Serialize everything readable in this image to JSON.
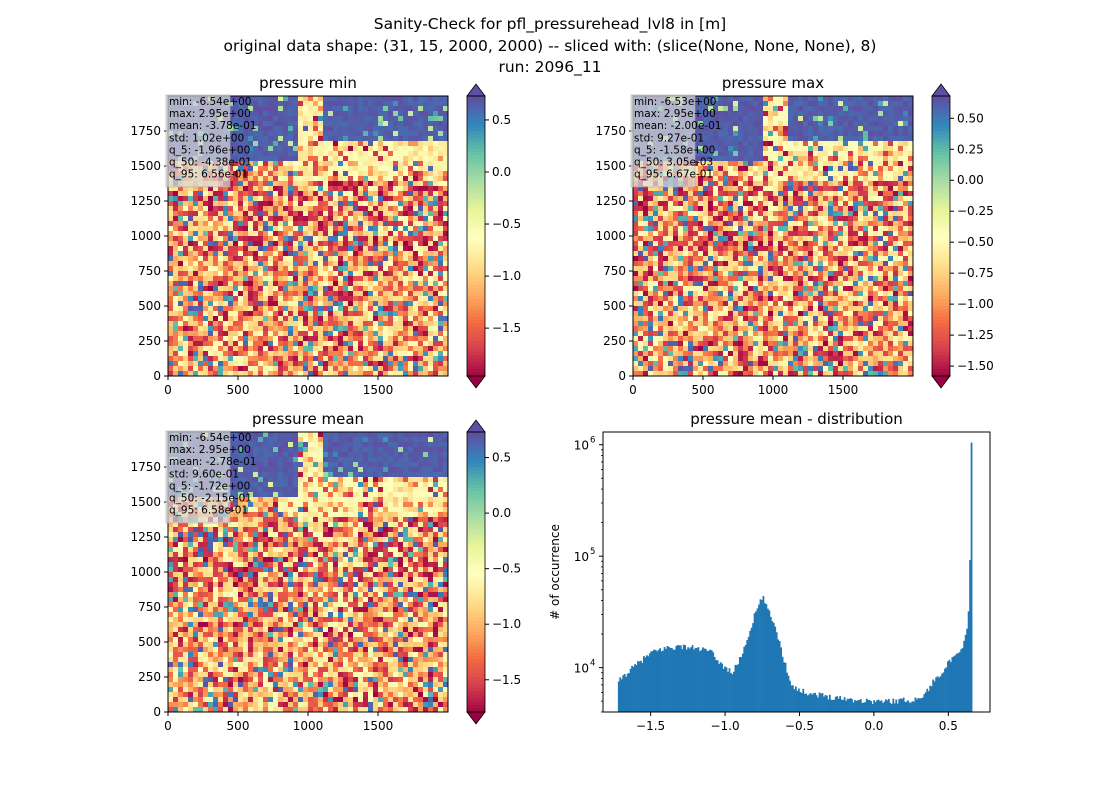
{
  "figure": {
    "suptitle_lines": [
      "Sanity-Check for pfl_pressurehead_lvl8 in [m]",
      "original data shape: (31, 15, 2000, 2000) -- sliced with: (slice(None, None, None), 8)",
      "run: 2096_11"
    ]
  },
  "colormap": {
    "name": "Spectral",
    "stops": [
      "#9e0142",
      "#d53e4f",
      "#f46d43",
      "#fdae61",
      "#fee08b",
      "#ffffbf",
      "#e6f598",
      "#abdda4",
      "#66c2a5",
      "#3288bd",
      "#5e4fa2"
    ]
  },
  "chart_data": [
    {
      "type": "heatmap",
      "title": "pressure min",
      "xlim": [
        0,
        2000
      ],
      "ylim": [
        0,
        2000
      ],
      "xticks": [
        "0",
        "500",
        "1000",
        "1500"
      ],
      "yticks": [
        "0",
        "250",
        "500",
        "750",
        "1000",
        "1250",
        "1500",
        "1750"
      ],
      "colorbar": {
        "vmin": -1.96,
        "vmax": 0.73,
        "ticks": [
          -1.5,
          -1.0,
          -0.5,
          0.0,
          0.5
        ],
        "tick_labels": [
          "−1.5",
          "−1.0",
          "−0.5",
          "0.0",
          "0.5"
        ],
        "extend": "both"
      },
      "stats": [
        "min: -6.54e+00",
        "max: 2.95e+00",
        "mean: -3.78e-01",
        "std: 1.02e+00",
        "q_5: -1.96e+00",
        "q_50: -4.38e-01",
        "q_95: 6.56e-01"
      ]
    },
    {
      "type": "heatmap",
      "title": "pressure max",
      "xlim": [
        0,
        2000
      ],
      "ylim": [
        0,
        2000
      ],
      "xticks": [
        "0",
        "500",
        "1000",
        "1500"
      ],
      "yticks": [
        "0",
        "250",
        "500",
        "750",
        "1000",
        "1250",
        "1500",
        "1750"
      ],
      "colorbar": {
        "vmin": -1.58,
        "vmax": 0.68,
        "ticks": [
          -1.5,
          -1.25,
          -1.0,
          -0.75,
          -0.5,
          -0.25,
          0.0,
          0.25,
          0.5
        ],
        "tick_labels": [
          "−1.50",
          "−1.25",
          "−1.00",
          "−0.75",
          "−0.50",
          "−0.25",
          "0.00",
          "0.25",
          "0.50"
        ],
        "extend": "both"
      },
      "stats": [
        "min: -6.53e+00",
        "max: 2.95e+00",
        "mean: -2.00e-01",
        "std: 9.27e-01",
        "q_5: -1.58e+00",
        "q_50: 3.05e-03",
        "q_95: 6.67e-01"
      ]
    },
    {
      "type": "heatmap",
      "title": "pressure mean",
      "xlim": [
        0,
        2000
      ],
      "ylim": [
        0,
        2000
      ],
      "xticks": [
        "0",
        "500",
        "1000",
        "1500"
      ],
      "yticks": [
        "0",
        "250",
        "500",
        "750",
        "1000",
        "1250",
        "1500",
        "1750"
      ],
      "colorbar": {
        "vmin": -1.79,
        "vmax": 0.73,
        "ticks": [
          -1.5,
          -1.0,
          -0.5,
          0.0,
          0.5
        ],
        "tick_labels": [
          "−1.5",
          "−1.0",
          "−0.5",
          "0.0",
          "0.5"
        ],
        "extend": "both"
      },
      "stats": [
        "min: -6.54e+00",
        "max: 2.95e+00",
        "mean: -2.78e-01",
        "std: 9.60e-01",
        "q_5: -1.72e+00",
        "q_50: -2.15e-01",
        "q_95: 6.58e-01"
      ]
    },
    {
      "type": "bar",
      "title": "pressure mean - distribution",
      "ylabel": "# of occurrence",
      "xlabel": "",
      "yscale": "log",
      "color": "#1f77b4",
      "xlim": [
        -1.82,
        0.78
      ],
      "ylim": [
        4000,
        1300000
      ],
      "xticks": [
        -1.5,
        -1.0,
        -0.5,
        0.0,
        0.5
      ],
      "xtick_labels": [
        "−1.5",
        "−1.0",
        "−0.5",
        "0.0",
        "0.5"
      ],
      "yticks": [
        10000,
        100000,
        1000000
      ],
      "ytick_labels": [
        "10",
        "10",
        "10"
      ],
      "ytick_exponents": [
        "4",
        "5",
        "6"
      ],
      "bins": {
        "start": -1.72,
        "end": 0.66
      },
      "profile_x": [
        -1.72,
        -1.7,
        -1.6,
        -1.5,
        -1.4,
        -1.3,
        -1.2,
        -1.1,
        -1.02,
        -0.95,
        -0.9,
        -0.85,
        -0.8,
        -0.76,
        -0.74,
        -0.72,
        -0.7,
        -0.66,
        -0.62,
        -0.58,
        -0.55,
        -0.5,
        -0.4,
        -0.3,
        -0.2,
        -0.1,
        0.0,
        0.1,
        0.2,
        0.3,
        0.35,
        0.4,
        0.45,
        0.5,
        0.55,
        0.58,
        0.61,
        0.63,
        0.64,
        0.65,
        0.655,
        0.66
      ],
      "profile_y": [
        7000,
        8000,
        10500,
        13500,
        15000,
        15500,
        15000,
        14000,
        10500,
        9000,
        12000,
        18000,
        30000,
        40000,
        42000,
        35000,
        30000,
        23000,
        14000,
        9000,
        7000,
        6200,
        5800,
        5500,
        5300,
        5100,
        5000,
        5000,
        5100,
        5200,
        6000,
        7500,
        9000,
        11000,
        12500,
        14000,
        17000,
        25000,
        42000,
        220000,
        1000000,
        220000
      ]
    }
  ]
}
